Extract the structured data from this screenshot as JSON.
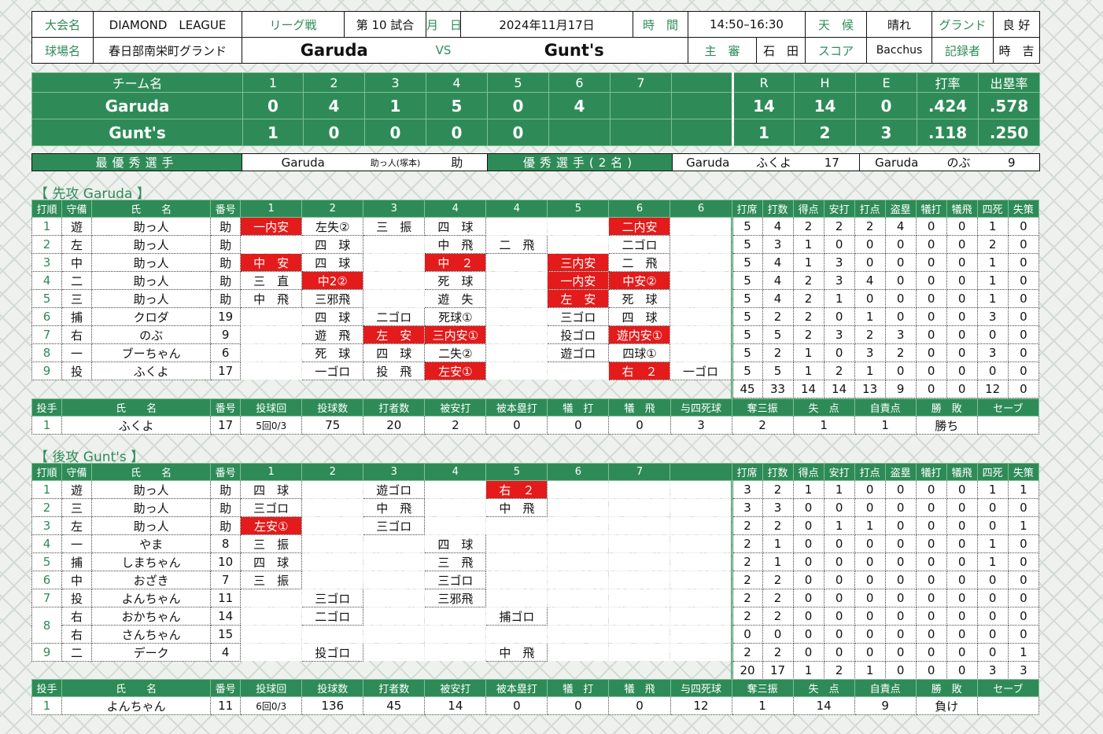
{
  "header": {
    "tournament_label": "大会名",
    "tournament": "DIAMOND　LEAGUE",
    "league_label": "リーグ戦",
    "game_no": "第 10 試合",
    "date_label": "月　日",
    "date": "2024年11月17日",
    "time_label": "時　間",
    "time": "14:50–16:30",
    "weather_label": "天　候",
    "weather": "晴れ",
    "ground_label": "グランド",
    "ground": "良 好",
    "venue_label": "球場名",
    "venue": "春日部南栄町グランド",
    "home_team": "Garuda",
    "vs": "VS",
    "away_team": "Gunt's",
    "umpire_label": "主　審",
    "umpire": "石　田",
    "score_label": "スコア",
    "scorer": "Bacchus",
    "recorder_label": "記録者",
    "recorder": "時　吉"
  },
  "scoreboard": {
    "team_col": "チーム名",
    "innings": [
      "1",
      "2",
      "3",
      "4",
      "5",
      "6",
      "7",
      ""
    ],
    "stat_cols": [
      "R",
      "H",
      "E",
      "打率",
      "出塁率"
    ],
    "teams": [
      {
        "name": "Garuda",
        "runs": [
          "0",
          "4",
          "1",
          "5",
          "0",
          "4",
          "",
          ""
        ],
        "stats": [
          "14",
          "14",
          "0",
          ".424",
          ".578"
        ]
      },
      {
        "name": "Gunt's",
        "runs": [
          "1",
          "0",
          "0",
          "0",
          "0",
          "",
          "",
          ""
        ],
        "stats": [
          "1",
          "2",
          "3",
          ".118",
          ".250"
        ]
      }
    ]
  },
  "awards": {
    "mvp_label": "最優秀選手",
    "mvp_team": "Garuda",
    "mvp_name": "助っ人(塚本)",
    "mvp_no": "助",
    "excellent_label": "優秀選手(2名)",
    "p1_team": "Garuda",
    "p1_name": "ふくよ",
    "p1_no": "17",
    "p2_team": "Garuda",
    "p2_name": "のぶ",
    "p2_no": "9"
  },
  "garuda": {
    "title": "【 先攻 Garuda 】",
    "batting_header": [
      "打順",
      "守備",
      "氏　　名",
      "番号",
      "1",
      "2",
      "3",
      "4",
      "4",
      "5",
      "6",
      "6",
      "打席",
      "打数",
      "得点",
      "安打",
      "打点",
      "盗塁",
      "犠打",
      "犠飛",
      "四死",
      "失策"
    ],
    "batters": [
      {
        "order": "1",
        "pos": "遊",
        "name": "助っ人",
        "no": "助",
        "ab": [
          {
            "t": "一内安",
            "h": 1
          },
          {
            "t": "左失②"
          },
          {
            "t": "三　振"
          },
          {
            "t": "四　球"
          },
          {
            "t": ""
          },
          {
            "t": ""
          },
          {
            "t": "二内安",
            "h": 1
          },
          {
            "t": ""
          }
        ],
        "stats": [
          "5",
          "4",
          "2",
          "2",
          "2",
          "4",
          "0",
          "0",
          "1",
          "0"
        ]
      },
      {
        "order": "2",
        "pos": "左",
        "name": "助っ人",
        "no": "助",
        "ab": [
          {
            "t": ""
          },
          {
            "t": "四　球"
          },
          {
            "t": ""
          },
          {
            "t": "中　飛"
          },
          {
            "t": "二　飛"
          },
          {
            "t": ""
          },
          {
            "t": "二ゴロ"
          },
          {
            "t": ""
          }
        ],
        "stats": [
          "5",
          "3",
          "1",
          "0",
          "0",
          "0",
          "0",
          "0",
          "2",
          "0"
        ]
      },
      {
        "order": "3",
        "pos": "中",
        "name": "助っ人",
        "no": "助",
        "ab": [
          {
            "t": "中　安",
            "h": 1
          },
          {
            "t": "四　球"
          },
          {
            "t": ""
          },
          {
            "t": "中　２",
            "h": 1
          },
          {
            "t": ""
          },
          {
            "t": "三内安",
            "h": 1
          },
          {
            "t": "二　飛"
          },
          {
            "t": ""
          }
        ],
        "stats": [
          "5",
          "4",
          "1",
          "3",
          "0",
          "0",
          "0",
          "0",
          "1",
          "0"
        ]
      },
      {
        "order": "4",
        "pos": "二",
        "name": "助っ人",
        "no": "助",
        "ab": [
          {
            "t": "三　直"
          },
          {
            "t": "中2②",
            "h": 1
          },
          {
            "t": ""
          },
          {
            "t": "死　球"
          },
          {
            "t": ""
          },
          {
            "t": "一内安",
            "h": 1
          },
          {
            "t": "中安②",
            "h": 1
          },
          {
            "t": ""
          }
        ],
        "stats": [
          "5",
          "4",
          "2",
          "3",
          "4",
          "0",
          "0",
          "0",
          "1",
          "0"
        ]
      },
      {
        "order": "5",
        "pos": "三",
        "name": "助っ人",
        "no": "助",
        "ab": [
          {
            "t": "中　飛"
          },
          {
            "t": "三邪飛"
          },
          {
            "t": ""
          },
          {
            "t": "遊　失"
          },
          {
            "t": ""
          },
          {
            "t": "左　安",
            "h": 1
          },
          {
            "t": "死　球"
          },
          {
            "t": ""
          }
        ],
        "stats": [
          "5",
          "4",
          "2",
          "1",
          "0",
          "0",
          "0",
          "0",
          "1",
          "0"
        ]
      },
      {
        "order": "6",
        "pos": "捕",
        "name": "クロダ",
        "no": "19",
        "ab": [
          {
            "t": ""
          },
          {
            "t": "四　球"
          },
          {
            "t": "二ゴロ"
          },
          {
            "t": "死球①"
          },
          {
            "t": ""
          },
          {
            "t": "三ゴロ"
          },
          {
            "t": "四　球"
          },
          {
            "t": ""
          }
        ],
        "stats": [
          "5",
          "2",
          "2",
          "0",
          "1",
          "0",
          "0",
          "0",
          "3",
          "0"
        ]
      },
      {
        "order": "7",
        "pos": "右",
        "name": "のぶ",
        "no": "9",
        "ab": [
          {
            "t": ""
          },
          {
            "t": "遊　飛"
          },
          {
            "t": "左　安",
            "h": 1
          },
          {
            "t": "三内安①",
            "h": 1
          },
          {
            "t": ""
          },
          {
            "t": "投ゴロ"
          },
          {
            "t": "遊内安①",
            "h": 1
          },
          {
            "t": ""
          }
        ],
        "stats": [
          "5",
          "5",
          "2",
          "3",
          "2",
          "3",
          "0",
          "0",
          "0",
          "0"
        ]
      },
      {
        "order": "8",
        "pos": "一",
        "name": "ブーちゃん",
        "no": "6",
        "ab": [
          {
            "t": ""
          },
          {
            "t": "死　球"
          },
          {
            "t": "四　球"
          },
          {
            "t": "二失②"
          },
          {
            "t": ""
          },
          {
            "t": "遊ゴロ"
          },
          {
            "t": "四球①"
          },
          {
            "t": ""
          }
        ],
        "stats": [
          "5",
          "2",
          "1",
          "0",
          "3",
          "2",
          "0",
          "0",
          "3",
          "0"
        ]
      },
      {
        "order": "9",
        "pos": "投",
        "name": "ふくよ",
        "no": "17",
        "ab": [
          {
            "t": ""
          },
          {
            "t": "一ゴロ"
          },
          {
            "t": "投　飛"
          },
          {
            "t": "左安①",
            "h": 1
          },
          {
            "t": ""
          },
          {
            "t": ""
          },
          {
            "t": "右　２",
            "h": 1
          },
          {
            "t": "一ゴロ"
          }
        ],
        "stats": [
          "5",
          "5",
          "1",
          "2",
          "1",
          "0",
          "0",
          "0",
          "0",
          "0"
        ]
      }
    ],
    "totals": [
      "45",
      "33",
      "14",
      "14",
      "13",
      "9",
      "0",
      "0",
      "12",
      "0"
    ],
    "pitching_header": [
      "投手",
      "氏　　名",
      "番号",
      "投球回",
      "投球数",
      "打者数",
      "被安打",
      "被本塁打",
      "犠　打",
      "犠　飛",
      "与四死球",
      "奪三振",
      "失　点",
      "自責点",
      "勝　敗",
      "セーブ"
    ],
    "pitchers": [
      {
        "cells": [
          "1",
          "ふくよ",
          "17",
          "5回0/3",
          "75",
          "20",
          "2",
          "0",
          "0",
          "0",
          "3",
          "2",
          "1",
          "1",
          "勝ち",
          ""
        ]
      }
    ]
  },
  "gunts": {
    "title": "【 後攻 Gunt's 】",
    "batting_header": [
      "打順",
      "守備",
      "氏　　名",
      "番号",
      "1",
      "2",
      "3",
      "4",
      "5",
      "6",
      "7",
      "",
      "打席",
      "打数",
      "得点",
      "安打",
      "打点",
      "盗塁",
      "犠打",
      "犠飛",
      "四死",
      "失策"
    ],
    "batters": [
      {
        "order": "1",
        "pos": "遊",
        "name": "助っ人",
        "no": "助",
        "ab": [
          {
            "t": "四　球"
          },
          {
            "t": ""
          },
          {
            "t": "遊ゴロ"
          },
          {
            "t": ""
          },
          {
            "t": "右　２",
            "h": 1
          },
          {
            "t": ""
          },
          {
            "t": ""
          },
          {
            "t": ""
          }
        ],
        "stats": [
          "3",
          "2",
          "1",
          "1",
          "0",
          "0",
          "0",
          "0",
          "1",
          "1"
        ]
      },
      {
        "order": "2",
        "pos": "三",
        "name": "助っ人",
        "no": "助",
        "ab": [
          {
            "t": "三ゴロ"
          },
          {
            "t": ""
          },
          {
            "t": "中　飛"
          },
          {
            "t": ""
          },
          {
            "t": "中　飛"
          },
          {
            "t": ""
          },
          {
            "t": ""
          },
          {
            "t": ""
          }
        ],
        "stats": [
          "3",
          "3",
          "0",
          "0",
          "0",
          "0",
          "0",
          "0",
          "0",
          "0"
        ]
      },
      {
        "order": "3",
        "pos": "左",
        "name": "助っ人",
        "no": "助",
        "ab": [
          {
            "t": "左安①",
            "h": 1
          },
          {
            "t": ""
          },
          {
            "t": "三ゴロ"
          },
          {
            "t": ""
          },
          {
            "t": ""
          },
          {
            "t": ""
          },
          {
            "t": ""
          },
          {
            "t": ""
          }
        ],
        "stats": [
          "2",
          "2",
          "0",
          "1",
          "1",
          "0",
          "0",
          "0",
          "0",
          "1"
        ]
      },
      {
        "order": "4",
        "pos": "一",
        "name": "やま",
        "no": "8",
        "ab": [
          {
            "t": "三　振"
          },
          {
            "t": ""
          },
          {
            "t": ""
          },
          {
            "t": "四　球"
          },
          {
            "t": ""
          },
          {
            "t": ""
          },
          {
            "t": ""
          },
          {
            "t": ""
          }
        ],
        "stats": [
          "2",
          "1",
          "0",
          "0",
          "0",
          "0",
          "0",
          "0",
          "1",
          "0"
        ]
      },
      {
        "order": "5",
        "pos": "捕",
        "name": "しまちゃん",
        "no": "10",
        "ab": [
          {
            "t": "四　球"
          },
          {
            "t": ""
          },
          {
            "t": ""
          },
          {
            "t": "三　飛"
          },
          {
            "t": ""
          },
          {
            "t": ""
          },
          {
            "t": ""
          },
          {
            "t": ""
          }
        ],
        "stats": [
          "2",
          "1",
          "0",
          "0",
          "0",
          "0",
          "0",
          "0",
          "1",
          "0"
        ]
      },
      {
        "order": "6",
        "pos": "中",
        "name": "おざき",
        "no": "7",
        "ab": [
          {
            "t": "三　振"
          },
          {
            "t": ""
          },
          {
            "t": ""
          },
          {
            "t": "三ゴロ"
          },
          {
            "t": ""
          },
          {
            "t": ""
          },
          {
            "t": ""
          },
          {
            "t": ""
          }
        ],
        "stats": [
          "2",
          "2",
          "0",
          "0",
          "0",
          "0",
          "0",
          "0",
          "0",
          "0"
        ]
      },
      {
        "order": "7",
        "pos": "投",
        "name": "よんちゃん",
        "no": "11",
        "ab": [
          {
            "t": ""
          },
          {
            "t": "三ゴロ"
          },
          {
            "t": ""
          },
          {
            "t": "三邪飛"
          },
          {
            "t": ""
          },
          {
            "t": ""
          },
          {
            "t": ""
          },
          {
            "t": ""
          }
        ],
        "stats": [
          "2",
          "2",
          "0",
          "0",
          "0",
          "0",
          "0",
          "0",
          "0",
          "0"
        ]
      },
      {
        "order": "8",
        "pos": "右",
        "name": "おかちゃん",
        "no": "14",
        "ab": [
          {
            "t": ""
          },
          {
            "t": "二ゴロ"
          },
          {
            "t": ""
          },
          {
            "t": ""
          },
          {
            "t": "捕ゴロ"
          },
          {
            "t": ""
          },
          {
            "t": ""
          },
          {
            "t": ""
          }
        ],
        "stats": [
          "2",
          "2",
          "0",
          "0",
          "0",
          "0",
          "0",
          "0",
          "0",
          "0"
        ]
      },
      {
        "order": "",
        "pos": "右",
        "name": "さんちゃん",
        "no": "15",
        "ab": [
          {
            "t": ""
          },
          {
            "t": ""
          },
          {
            "t": ""
          },
          {
            "t": ""
          },
          {
            "t": ""
          },
          {
            "t": ""
          },
          {
            "t": ""
          },
          {
            "t": ""
          }
        ],
        "stats": [
          "0",
          "0",
          "0",
          "0",
          "0",
          "0",
          "0",
          "0",
          "0",
          "0"
        ]
      },
      {
        "order": "9",
        "pos": "二",
        "name": "デーク",
        "no": "4",
        "ab": [
          {
            "t": ""
          },
          {
            "t": "投ゴロ"
          },
          {
            "t": ""
          },
          {
            "t": ""
          },
          {
            "t": "中　飛"
          },
          {
            "t": ""
          },
          {
            "t": ""
          },
          {
            "t": ""
          }
        ],
        "stats": [
          "2",
          "2",
          "0",
          "0",
          "0",
          "0",
          "0",
          "0",
          "0",
          "1"
        ]
      }
    ],
    "totals": [
      "20",
      "17",
      "1",
      "2",
      "1",
      "0",
      "0",
      "0",
      "3",
      "3"
    ],
    "pitching_header": [
      "投手",
      "氏　　名",
      "番号",
      "投球回",
      "投球数",
      "打者数",
      "被安打",
      "被本塁打",
      "犠　打",
      "犠　飛",
      "与四死球",
      "奪三振",
      "失　点",
      "自責点",
      "勝　敗",
      "セーブ"
    ],
    "pitchers": [
      {
        "cells": [
          "1",
          "よんちゃん",
          "11",
          "6回0/3",
          "136",
          "45",
          "14",
          "0",
          "0",
          "0",
          "12",
          "1",
          "14",
          "9",
          "負け",
          ""
        ]
      }
    ]
  }
}
